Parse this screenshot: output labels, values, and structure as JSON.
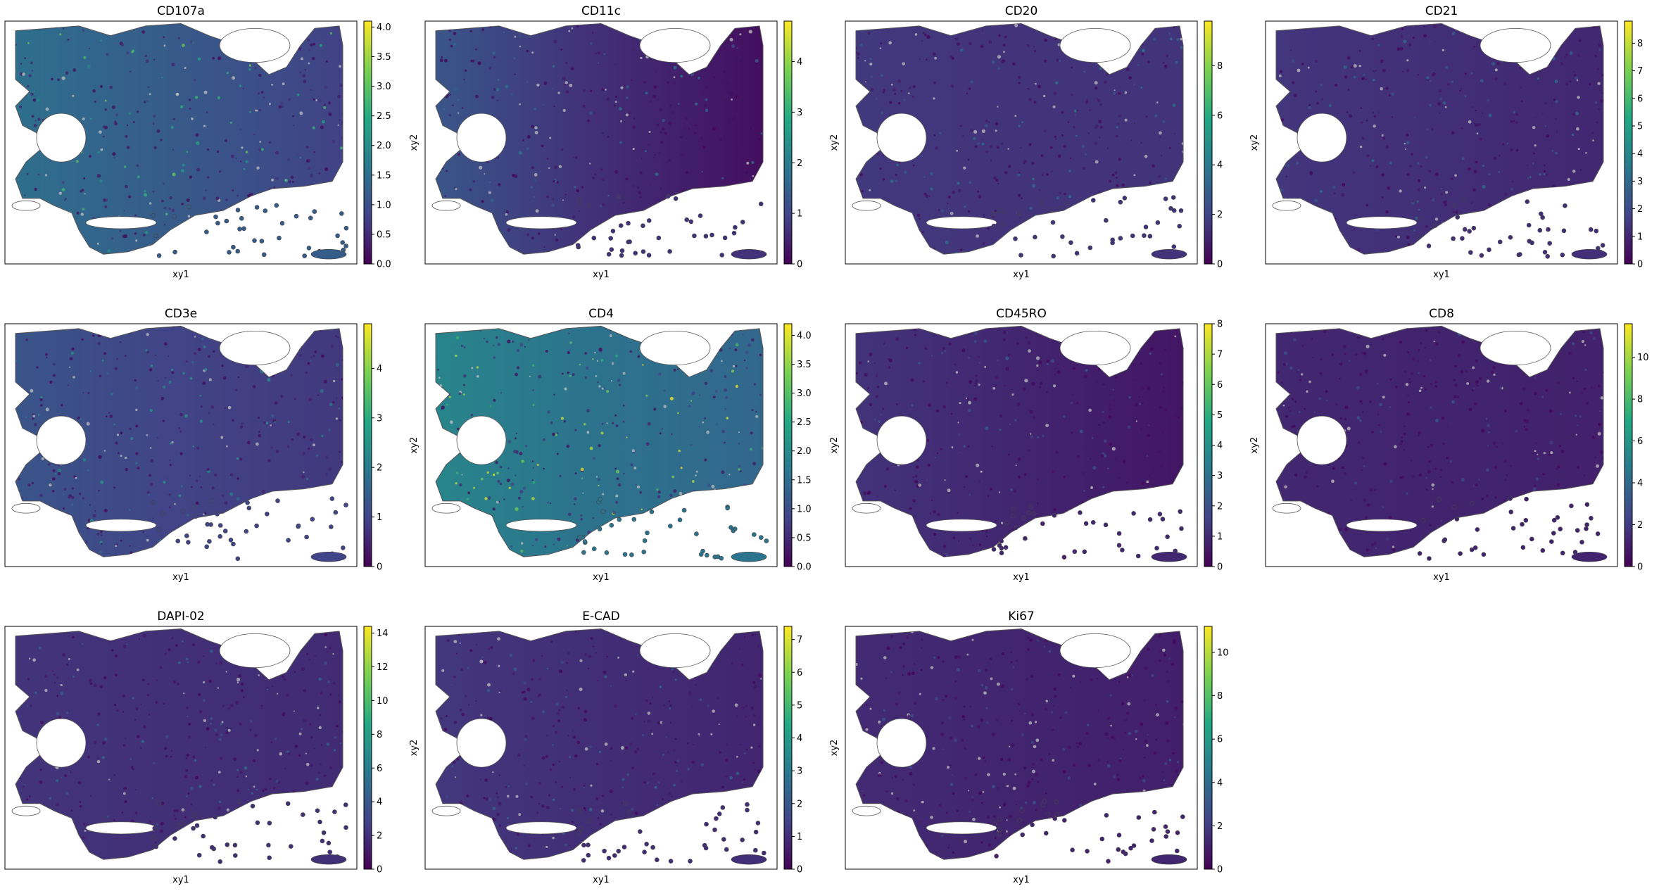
{
  "figure": {
    "colormap": "viridis",
    "colormap_stops": [
      "#440154",
      "#414487",
      "#2a788e",
      "#22a884",
      "#7ad151",
      "#fde725"
    ],
    "panels_per_row": 4,
    "xlabel": "xy1",
    "ylabel": "xy2"
  },
  "chart_data": [
    {
      "type": "scatter",
      "title": "CD107a",
      "xlabel": "xy1",
      "ylabel": "xy2",
      "colorbar": {
        "range": [
          0,
          4.1
        ],
        "ticks": [
          "0.0",
          "0.5",
          "1.0",
          "1.5",
          "2.0",
          "2.5",
          "3.0",
          "3.5",
          "4.0"
        ],
        "values": [
          0,
          0.5,
          1,
          1.5,
          2,
          2.5,
          3,
          3.5,
          4
        ]
      },
      "typical_level": 1.2,
      "left_level": 1.5,
      "right_level": 0.8
    },
    {
      "type": "scatter",
      "title": "CD11c",
      "xlabel": "xy1",
      "ylabel": "xy2",
      "colorbar": {
        "range": [
          0,
          4.8
        ],
        "ticks": [
          "0",
          "1",
          "2",
          "3",
          "4"
        ],
        "values": [
          0,
          1,
          2,
          3,
          4
        ]
      },
      "typical_level": 0.7,
      "left_level": 1.3,
      "right_level": 0.2
    },
    {
      "type": "scatter",
      "title": "CD20",
      "xlabel": "xy1",
      "ylabel": "xy2",
      "colorbar": {
        "range": [
          0,
          9.8
        ],
        "ticks": [
          "0",
          "2",
          "4",
          "6",
          "8"
        ],
        "values": [
          0,
          2,
          4,
          6,
          8
        ]
      },
      "typical_level": 1.5,
      "left_level": 1.6,
      "right_level": 1.5
    },
    {
      "type": "scatter",
      "title": "CD21",
      "xlabel": "xy1",
      "ylabel": "xy2",
      "colorbar": {
        "range": [
          0,
          8.8
        ],
        "ticks": [
          "0",
          "1",
          "2",
          "3",
          "4",
          "5",
          "6",
          "7",
          "8"
        ],
        "values": [
          0,
          1,
          2,
          3,
          4,
          5,
          6,
          7,
          8
        ]
      },
      "typical_level": 1.2,
      "left_level": 1.4,
      "right_level": 1.0
    },
    {
      "type": "scatter",
      "title": "CD3e",
      "xlabel": "xy1",
      "ylabel": "xy2",
      "colorbar": {
        "range": [
          0,
          4.9
        ],
        "ticks": [
          "0",
          "1",
          "2",
          "3",
          "4"
        ],
        "values": [
          0,
          1,
          2,
          3,
          4
        ]
      },
      "typical_level": 1.0,
      "left_level": 1.3,
      "right_level": 0.8
    },
    {
      "type": "scatter",
      "title": "CD4",
      "xlabel": "xy1",
      "ylabel": "xy2",
      "colorbar": {
        "range": [
          0,
          4.2
        ],
        "ticks": [
          "0.0",
          "0.5",
          "1.0",
          "1.5",
          "2.0",
          "2.5",
          "3.0",
          "3.5",
          "4.0"
        ],
        "values": [
          0,
          0.5,
          1,
          1.5,
          2,
          2.5,
          3,
          3.5,
          4
        ]
      },
      "typical_level": 1.6,
      "left_level": 1.9,
      "right_level": 1.4
    },
    {
      "type": "scatter",
      "title": "CD45RO",
      "xlabel": "xy1",
      "ylabel": "xy2",
      "colorbar": {
        "range": [
          0,
          8.0
        ],
        "ticks": [
          "0",
          "1",
          "2",
          "3",
          "4",
          "5",
          "6",
          "7",
          "8"
        ],
        "values": [
          0,
          1,
          2,
          3,
          4,
          5,
          6,
          7,
          8
        ]
      },
      "typical_level": 0.9,
      "left_level": 1.2,
      "right_level": 0.5
    },
    {
      "type": "scatter",
      "title": "CD8",
      "xlabel": "xy1",
      "ylabel": "xy2",
      "colorbar": {
        "range": [
          0,
          11.6
        ],
        "ticks": [
          "0",
          "2",
          "4",
          "6",
          "8",
          "10"
        ],
        "values": [
          0,
          2,
          4,
          6,
          8,
          10
        ]
      },
      "typical_level": 1.2,
      "left_level": 1.3,
      "right_level": 1.1
    },
    {
      "type": "scatter",
      "title": "DAPI-02",
      "xlabel": "xy1",
      "ylabel": "xy2",
      "colorbar": {
        "range": [
          0,
          14.4
        ],
        "ticks": [
          "0",
          "2",
          "4",
          "6",
          "8",
          "10",
          "12",
          "14"
        ],
        "values": [
          0,
          2,
          4,
          6,
          8,
          10,
          12,
          14
        ]
      },
      "typical_level": 2.0,
      "left_level": 2.2,
      "right_level": 1.8
    },
    {
      "type": "scatter",
      "title": "E-CAD",
      "xlabel": "xy1",
      "ylabel": "xy2",
      "colorbar": {
        "range": [
          0,
          7.4
        ],
        "ticks": [
          "0",
          "1",
          "2",
          "3",
          "4",
          "5",
          "6",
          "7"
        ],
        "values": [
          0,
          1,
          2,
          3,
          4,
          5,
          6,
          7
        ]
      },
      "typical_level": 1.0,
      "left_level": 1.2,
      "right_level": 0.8
    },
    {
      "type": "scatter",
      "title": "Ki67",
      "xlabel": "xy1",
      "ylabel": "xy2",
      "colorbar": {
        "range": [
          0,
          11.2
        ],
        "ticks": [
          "0",
          "2",
          "4",
          "6",
          "8",
          "10"
        ],
        "values": [
          0,
          2,
          4,
          6,
          8,
          10
        ]
      },
      "typical_level": 1.2,
      "left_level": 1.4,
      "right_level": 1.0
    }
  ]
}
